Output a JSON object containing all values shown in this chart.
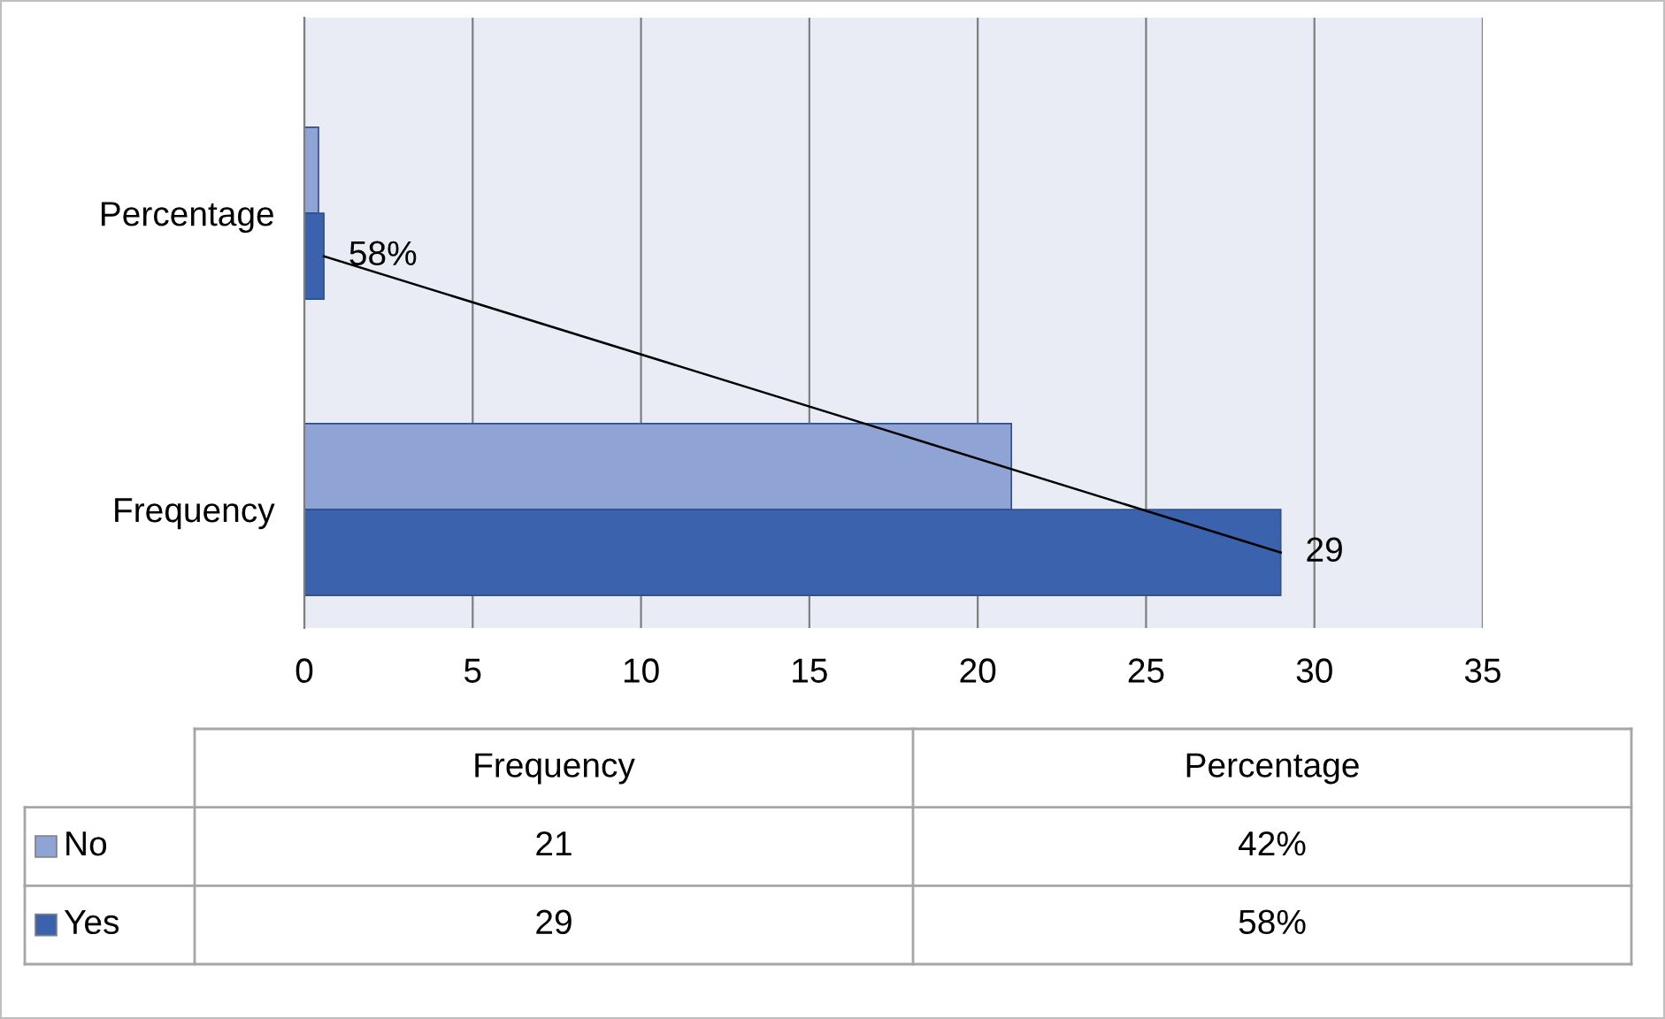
{
  "chart_data": {
    "type": "bar",
    "orientation": "horizontal",
    "categories": [
      "Percentage",
      "Frequency"
    ],
    "series": [
      {
        "name": "No",
        "color": "#8fa3d4",
        "values": [
          0.42,
          21
        ],
        "value_labels": [
          null,
          null
        ]
      },
      {
        "name": "Yes",
        "color": "#3a62ad",
        "values": [
          0.58,
          29
        ],
        "value_labels": [
          "58%",
          "29"
        ]
      },
      {
        "type": "line",
        "color": "#000000",
        "values": [
          0.58,
          29
        ]
      }
    ],
    "annotations": [
      "21",
      "42%",
      "29",
      "58%"
    ],
    "xlim": [
      0,
      35
    ],
    "xticks": [
      0,
      5,
      10,
      15,
      20,
      25,
      30,
      35
    ],
    "grid": "x",
    "legend": "bottom"
  }
}
